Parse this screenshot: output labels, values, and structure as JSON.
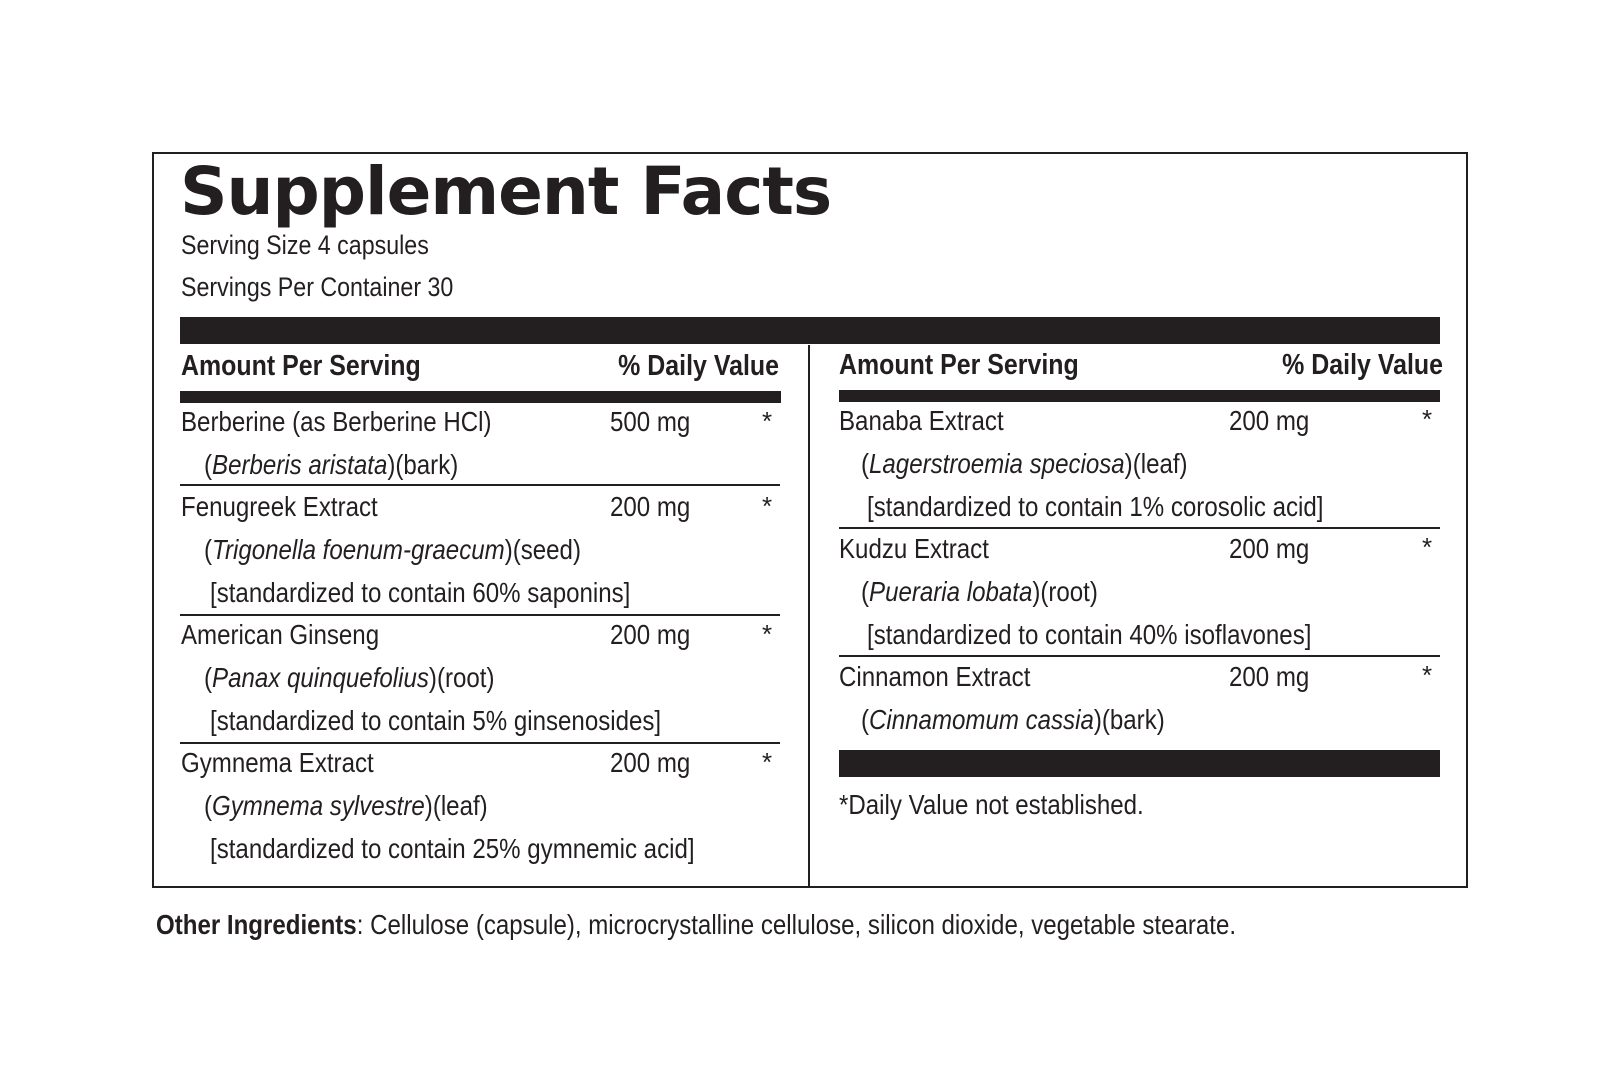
{
  "title": "Supplement Facts",
  "serving_size": "Serving Size 4 capsules",
  "servings_per_container": "Servings Per Container 30",
  "columns": {
    "amount_header": "Amount Per Serving",
    "dv_header": "% Daily Value"
  },
  "left_ingredients": [
    {
      "name": "Berberine (as Berberine HCl)",
      "amount": "500 mg",
      "dv": "*",
      "latin": "Berberis aristata",
      "part": "(bark)",
      "standardized": ""
    },
    {
      "name": "Fenugreek Extract",
      "amount": "200 mg",
      "dv": "*",
      "latin": "Trigonella foenum-graecum",
      "part": "(seed)",
      "standardized": "[standardized to contain 60% saponins]"
    },
    {
      "name": "American Ginseng",
      "amount": "200 mg",
      "dv": "*",
      "latin": "Panax quinquefolius",
      "part": "(root)",
      "standardized": "[standardized to contain 5% ginsenosides]"
    },
    {
      "name": "Gymnema Extract",
      "amount": "200 mg",
      "dv": "*",
      "latin": "Gymnema sylvestre",
      "part": "(leaf)",
      "standardized": "[standardized to contain 25% gymnemic acid]"
    }
  ],
  "right_ingredients": [
    {
      "name": "Banaba Extract",
      "amount": "200 mg",
      "dv": "*",
      "latin": "Lagerstroemia speciosa",
      "part": "(leaf)",
      "standardized": "[standardized to contain 1% corosolic acid]"
    },
    {
      "name": "Kudzu Extract",
      "amount": "200 mg",
      "dv": "*",
      "latin": "Pueraria lobata",
      "part": "(root)",
      "standardized": "[standardized to contain 40% isoflavones]"
    },
    {
      "name": "Cinnamon Extract",
      "amount": "200 mg",
      "dv": "*",
      "latin": "Cinnamomum cassia",
      "part": "(bark)",
      "standardized": ""
    }
  ],
  "footnote": "*Daily Value not established.",
  "other_ingredients": {
    "label": "Other Ingredients",
    "text": ": Cellulose (capsule), microcrystalline cellulose, silicon dioxide, vegetable stearate."
  }
}
